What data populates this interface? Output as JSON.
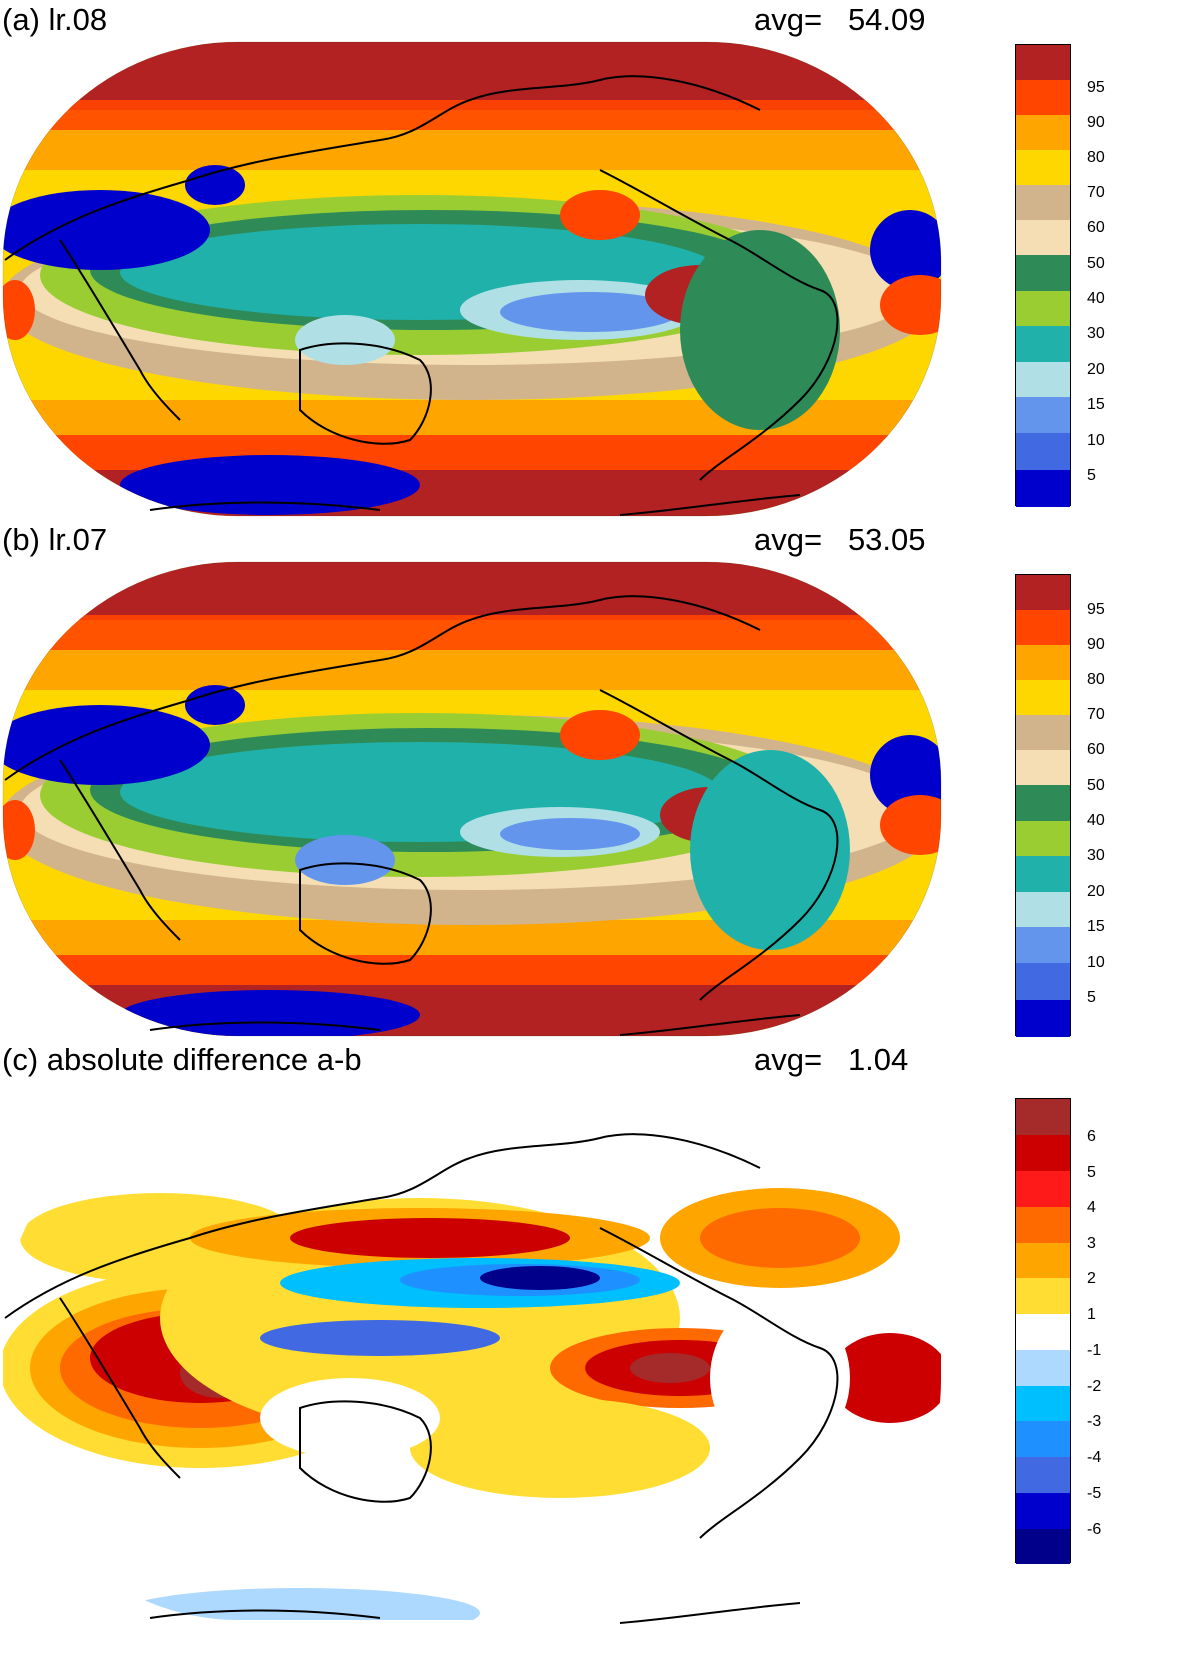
{
  "panels": [
    {
      "title": "(a) lr.08",
      "avg_label": "avg=",
      "avg_value": "54.09",
      "colorbar": {
        "labels": [
          "95",
          "90",
          "80",
          "70",
          "60",
          "50",
          "40",
          "30",
          "20",
          "15",
          "10",
          "5"
        ],
        "colors": [
          "#b22222",
          "#ff4500",
          "#ffa500",
          "#ffd700",
          "#d2b48c",
          "#f5deb3",
          "#2e8b57",
          "#9acd32",
          "#20b2aa",
          "#b0e0e6",
          "#6495ed",
          "#4169e1",
          "#0000cd"
        ]
      }
    },
    {
      "title": "(b) lr.07",
      "avg_label": "avg=",
      "avg_value": "53.05",
      "colorbar": {
        "labels": [
          "95",
          "90",
          "80",
          "70",
          "60",
          "50",
          "40",
          "30",
          "20",
          "15",
          "10",
          "5"
        ],
        "colors": [
          "#b22222",
          "#ff4500",
          "#ffa500",
          "#ffd700",
          "#d2b48c",
          "#f5deb3",
          "#2e8b57",
          "#9acd32",
          "#20b2aa",
          "#b0e0e6",
          "#6495ed",
          "#4169e1",
          "#0000cd"
        ]
      }
    },
    {
      "title": "(c) absolute difference a-b",
      "avg_label": "avg=",
      "avg_value": "1.04",
      "colorbar": {
        "labels": [
          "6",
          "5",
          "4",
          "3",
          "2",
          "1",
          "-1",
          "-2",
          "-3",
          "-4",
          "-5",
          "-6"
        ],
        "colors": [
          "#a52a2a",
          "#cc0000",
          "#ff1a1a",
          "#ff6a00",
          "#ffa500",
          "#ffdd33",
          "#ffffff",
          "#add8ff",
          "#00bfff",
          "#1e90ff",
          "#4169e1",
          "#0000cd",
          "#00008b"
        ]
      }
    }
  ]
}
